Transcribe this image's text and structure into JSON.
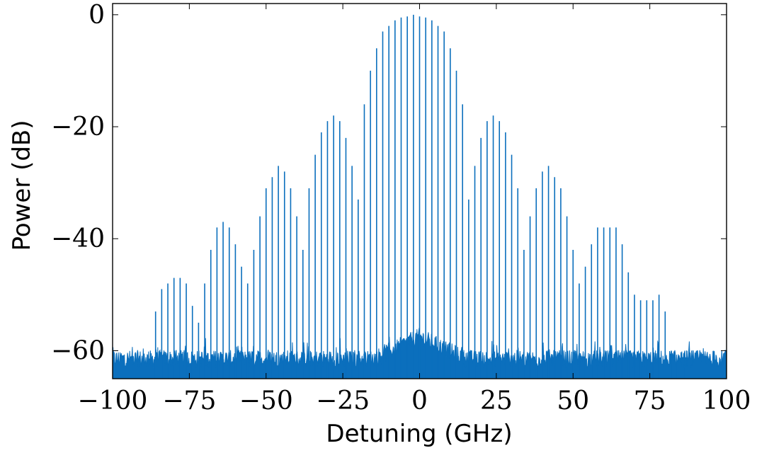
{
  "chart_data": {
    "type": "line",
    "title": "",
    "xlabel": "Detuning (GHz)",
    "ylabel": "Power (dB)",
    "xlim": [
      -100,
      100
    ],
    "ylim": [
      -65,
      2
    ],
    "x_ticks": [
      -100,
      -75,
      -50,
      -25,
      0,
      25,
      50,
      75,
      100
    ],
    "x_tick_labels": [
      "−100",
      "−75",
      "−50",
      "−25",
      "0",
      "25",
      "50",
      "75",
      "100"
    ],
    "y_ticks": [
      0,
      -20,
      -40,
      -60
    ],
    "y_tick_labels": [
      "0",
      "−20",
      "−40",
      "−60"
    ],
    "grid": false,
    "legend": "none",
    "line_color": "#0b6fbd",
    "noise_floor_db": -60,
    "comb_line_spacing_ghz": 2,
    "series": [
      {
        "comb_lines_ghz": [
          -86,
          -84,
          -82,
          -80,
          -78,
          -76,
          -74,
          -72,
          -70,
          -68,
          -66,
          -64,
          -62,
          -60,
          -58,
          -56,
          -54,
          -52,
          -50,
          -48,
          -46,
          -44,
          -42,
          -40,
          -38,
          -36,
          -34,
          -32,
          -30,
          -28,
          -26,
          -24,
          -22,
          -20,
          -18,
          -16,
          -14,
          -12,
          -10,
          -8,
          -6,
          -4,
          -2,
          0,
          2,
          4,
          6,
          8,
          10,
          12,
          14,
          16,
          18,
          20,
          22,
          24,
          26,
          28,
          30,
          32,
          34,
          36,
          38,
          40,
          42,
          44,
          46,
          48,
          50,
          52,
          54,
          56,
          58,
          60,
          62,
          64,
          66,
          68,
          70,
          72,
          74,
          76,
          78,
          80,
          82,
          84,
          86
        ],
        "peak_power_db": [
          -53,
          -49,
          -48,
          -47,
          -47,
          -48,
          -52,
          -55,
          -48,
          -42,
          -38,
          -37,
          -38,
          -41,
          -45,
          -48,
          -42,
          -36,
          -31,
          -29,
          -27,
          -28,
          -31,
          -36,
          -42,
          -31,
          -25,
          -21,
          -19,
          -18,
          -19,
          -22,
          -27,
          -33,
          -16,
          -10,
          -6,
          -3,
          -2,
          -1,
          -0.5,
          -0.3,
          0,
          -0.3,
          -0.5,
          -1,
          -2,
          -3,
          -6,
          -10,
          -16,
          -33,
          -27,
          -22,
          -19,
          -18,
          -19,
          -21,
          -25,
          -31,
          -42,
          -36,
          -31,
          -28,
          -27,
          -29,
          -31,
          -36,
          -42,
          -48,
          -45,
          -41,
          -38,
          -38,
          -38,
          -38,
          -41,
          -46,
          -50,
          -51,
          -51,
          -51,
          -50,
          -53,
          -60,
          -62,
          -63
        ]
      }
    ]
  }
}
